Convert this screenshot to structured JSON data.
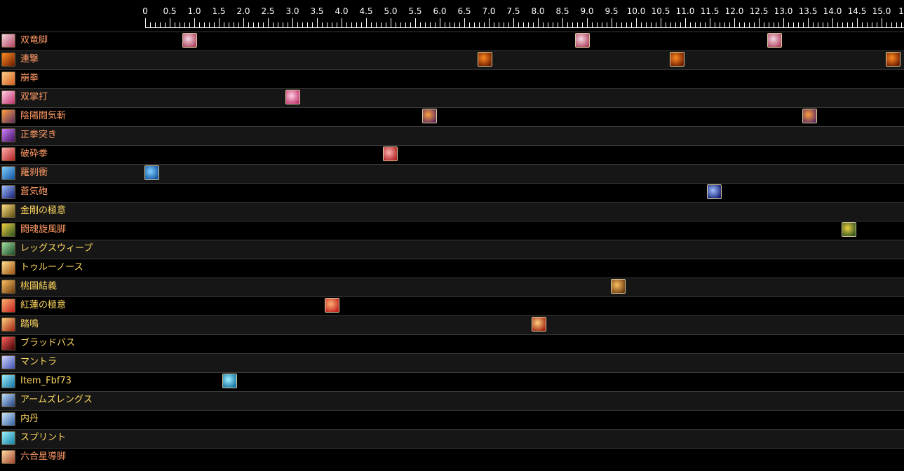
{
  "timeline": {
    "tick_labels": [
      "0",
      "0.5",
      "1.0",
      "1.5",
      "2.0",
      "2.5",
      "3.0",
      "3.5",
      "4.0",
      "4.5",
      "5.0",
      "5.5",
      "6.0",
      "6.5",
      "7.0",
      "7.5",
      "8.0",
      "8.5",
      "9.0",
      "9.5",
      "10.0",
      "10.5",
      "11.0",
      "11.5",
      "12.0",
      "12.5",
      "13.0",
      "13.5",
      "14.0",
      "14.5",
      "15.0",
      "1"
    ],
    "label_color": "#ffffff"
  },
  "actions": [
    {
      "name": "双竜脚",
      "color": "#ff9a66",
      "icon": "leg-kick-icon",
      "icon_colors": [
        "#f4d6e0",
        "#b04060"
      ],
      "casts": [
        0.77,
        8.77,
        12.68
      ]
    },
    {
      "name": "連撃",
      "color": "#ff9a66",
      "icon": "fire-combo-icon",
      "icon_colors": [
        "#ff8a20",
        "#6a1a00"
      ],
      "casts": [
        6.78,
        10.7,
        15.1
      ]
    },
    {
      "name": "崩拳",
      "color": "#ff9a66",
      "icon": "fist-icon",
      "icon_colors": [
        "#ffcc88",
        "#d06020"
      ],
      "casts": []
    },
    {
      "name": "双掌打",
      "color": "#ff9a66",
      "icon": "twin-palm-icon",
      "icon_colors": [
        "#ffd0e0",
        "#c03070"
      ],
      "casts": [
        2.87
      ]
    },
    {
      "name": "陰陽闘気斬",
      "color": "#ff9a66",
      "icon": "yin-yang-slash-icon",
      "icon_colors": [
        "#ffa040",
        "#5a2a60"
      ],
      "casts": [
        5.66,
        13.4
      ]
    },
    {
      "name": "正拳突き",
      "color": "#ff9a66",
      "icon": "true-strike-icon",
      "icon_colors": [
        "#d080ff",
        "#401060"
      ],
      "casts": []
    },
    {
      "name": "破砕拳",
      "color": "#ff9a66",
      "icon": "demolish-icon",
      "icon_colors": [
        "#ffb0b0",
        "#b02020"
      ],
      "casts": [
        4.86
      ]
    },
    {
      "name": "羅刹衝",
      "color": "#ff9a66",
      "icon": "rush-icon",
      "icon_colors": [
        "#80d0ff",
        "#1050a0"
      ],
      "casts": [
        0
      ]
    },
    {
      "name": "蒼気砲",
      "color": "#ff9a66",
      "icon": "blue-blast-icon",
      "icon_colors": [
        "#a0c0ff",
        "#101a70"
      ],
      "casts": [
        11.45
      ]
    },
    {
      "name": "金剛の極意",
      "color": "#ffd860",
      "icon": "riddle-of-earth-icon",
      "icon_colors": [
        "#ffe080",
        "#5a4a10"
      ],
      "casts": []
    },
    {
      "name": "闘魂旋風脚",
      "color": "#ff9a66",
      "icon": "tornado-kick-icon",
      "icon_colors": [
        "#f0d040",
        "#2a5020"
      ],
      "casts": [
        14.2
      ]
    },
    {
      "name": "レッグスウィープ",
      "color": "#ffd860",
      "icon": "leg-sweep-icon",
      "icon_colors": [
        "#a0e0a0",
        "#1a4a2a"
      ],
      "casts": []
    },
    {
      "name": "トゥルーノース",
      "color": "#ffd860",
      "icon": "true-north-icon",
      "icon_colors": [
        "#ffe090",
        "#a05010"
      ],
      "casts": []
    },
    {
      "name": "桃園結義",
      "color": "#ffd860",
      "icon": "brotherhood-icon",
      "icon_colors": [
        "#ffc060",
        "#6a3a10"
      ],
      "casts": [
        9.5
      ]
    },
    {
      "name": "紅蓮の極意",
      "color": "#ffd860",
      "icon": "riddle-of-fire-icon",
      "icon_colors": [
        "#ffb070",
        "#c02020"
      ],
      "casts": [
        3.67
      ]
    },
    {
      "name": "踏鳴",
      "color": "#ffd860",
      "icon": "howling-fist-icon",
      "icon_colors": [
        "#ffd080",
        "#a02010"
      ],
      "casts": [
        7.89
      ]
    },
    {
      "name": "ブラッドバス",
      "color": "#ffd860",
      "icon": "bloodbath-icon",
      "icon_colors": [
        "#ff6060",
        "#400000"
      ],
      "casts": []
    },
    {
      "name": "マントラ",
      "color": "#ffd860",
      "icon": "mantra-icon",
      "icon_colors": [
        "#d0d8ff",
        "#4050b0"
      ],
      "casts": []
    },
    {
      "name": "Item_Fbf73",
      "color": "#ffd860",
      "icon": "item-icon",
      "icon_colors": [
        "#a0f0ff",
        "#1070a0"
      ],
      "casts": [
        1.59
      ]
    },
    {
      "name": "アームズレングス",
      "color": "#ffd860",
      "icon": "arms-length-icon",
      "icon_colors": [
        "#c0e0ff",
        "#204080"
      ],
      "casts": []
    },
    {
      "name": "内丹",
      "color": "#ffd860",
      "icon": "second-wind-icon",
      "icon_colors": [
        "#d0e8ff",
        "#3060a0"
      ],
      "casts": []
    },
    {
      "name": "スプリント",
      "color": "#ffd860",
      "icon": "sprint-icon",
      "icon_colors": [
        "#a0f0ff",
        "#1080a0"
      ],
      "casts": []
    },
    {
      "name": "六合星導脚",
      "color": "#ff9a66",
      "icon": "six-sided-star-icon",
      "icon_colors": [
        "#ffe0a0",
        "#a04030"
      ],
      "casts": []
    }
  ]
}
